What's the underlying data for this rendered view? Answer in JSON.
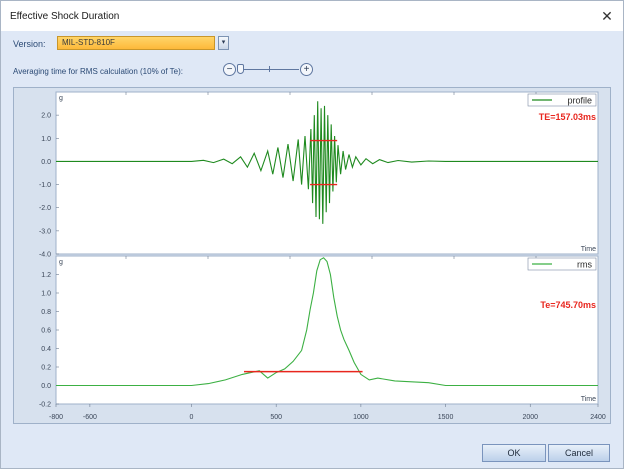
{
  "window": {
    "title": "Effective Shock Duration",
    "close_glyph": "✕"
  },
  "version": {
    "label": "Version:",
    "selected": "MIL-STD-810F",
    "dropdown_glyph": "▾"
  },
  "averaging": {
    "label": "Averaging time for RMS calculation (10% of Te):",
    "minus_glyph": "−",
    "plus_glyph": "+",
    "slider_value_fraction": 0.0
  },
  "buttons": {
    "ok": "OK",
    "cancel": "Cancel"
  },
  "colors": {
    "profile_line": "#1f8a1f",
    "rms_line": "#3cb043",
    "te_marker": "#e8261e",
    "chart_bg": "#ffffff"
  },
  "chart_data": [
    {
      "type": "line",
      "name": "profile-chart",
      "ylabel": "g",
      "xlabel": "Time",
      "yticks": [
        "2.0",
        "1.0",
        "0.0",
        "-1.0",
        "-2.0",
        "-3.0",
        "-4.0"
      ],
      "ylim": [
        -4.0,
        3.0
      ],
      "xlim": [
        -800,
        2400
      ],
      "legend": {
        "entry": "profile",
        "position": "top-right"
      },
      "annotation": "TE=157.03ms",
      "series": [
        {
          "name": "profile",
          "x": [
            -800,
            0,
            70,
            130,
            190,
            240,
            290,
            330,
            370,
            410,
            450,
            480,
            510,
            540,
            570,
            600,
            630,
            650,
            670,
            690,
            705,
            715,
            725,
            735,
            745,
            755,
            765,
            775,
            785,
            795,
            805,
            815,
            825,
            835,
            845,
            855,
            865,
            880,
            895,
            910,
            930,
            950,
            970,
            1000,
            1030,
            1070,
            1110,
            1160,
            1220,
            1300,
            1400,
            1500,
            2400
          ],
          "y": [
            0,
            0,
            0.05,
            -0.05,
            0.1,
            -0.1,
            0.2,
            -0.25,
            0.35,
            -0.4,
            0.45,
            -0.55,
            0.6,
            -0.7,
            0.75,
            -0.85,
            0.95,
            -1.0,
            1.1,
            -1.2,
            1.4,
            -1.8,
            2.0,
            -2.4,
            2.6,
            -2.5,
            2.3,
            -2.7,
            2.4,
            -2.2,
            2.0,
            -1.8,
            1.6,
            -1.3,
            1.1,
            -0.9,
            0.7,
            -0.55,
            0.45,
            -0.35,
            0.3,
            -0.25,
            0.2,
            -0.15,
            0.12,
            -0.1,
            0.08,
            -0.05,
            0.04,
            -0.03,
            0.02,
            0,
            0
          ]
        }
      ],
      "te_marker": {
        "x_start": 700,
        "x_end": 860,
        "y_upper": 0.9,
        "y_lower": -1.0
      }
    },
    {
      "type": "line",
      "name": "rms-chart",
      "ylabel": "g",
      "xlabel": "Time",
      "yticks": [
        "1.2",
        "1.0",
        "0.8",
        "0.6",
        "0.4",
        "0.2",
        "0.0",
        "-0.2"
      ],
      "ylim": [
        -0.2,
        1.4
      ],
      "xlim": [
        -800,
        2400
      ],
      "xticks": [
        -800,
        -600,
        0,
        500,
        1000,
        1500,
        2000,
        2400
      ],
      "legend": {
        "entry": "rms",
        "position": "top-right"
      },
      "annotation": "Te=745.70ms",
      "series": [
        {
          "name": "rms",
          "x": [
            -800,
            0,
            100,
            200,
            300,
            350,
            400,
            450,
            500,
            550,
            600,
            650,
            680,
            700,
            720,
            740,
            760,
            780,
            800,
            820,
            840,
            860,
            880,
            900,
            930,
            960,
            1000,
            1050,
            1100,
            1200,
            1400,
            1500,
            1700,
            2400
          ],
          "y": [
            0,
            0,
            0.02,
            0.06,
            0.12,
            0.14,
            0.16,
            0.08,
            0.14,
            0.18,
            0.26,
            0.38,
            0.6,
            0.82,
            1.0,
            1.24,
            1.36,
            1.38,
            1.34,
            1.2,
            0.95,
            0.75,
            0.6,
            0.5,
            0.38,
            0.25,
            0.12,
            0.06,
            0.08,
            0.05,
            0.03,
            0.0,
            0.0,
            0.0
          ]
        }
      ],
      "te_marker": {
        "x_start": 310,
        "x_end": 1010,
        "y": 0.15
      }
    }
  ]
}
